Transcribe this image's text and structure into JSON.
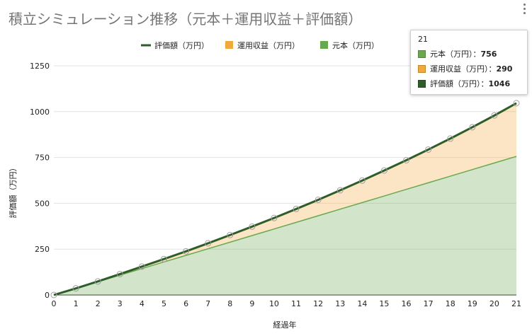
{
  "chart_data": {
    "type": "area",
    "title": "積立シミュレーション推移（元本＋運用収益＋評価額）",
    "xlabel": "経過年",
    "ylabel": "評価額（万円）",
    "x": [
      0,
      1,
      2,
      3,
      4,
      5,
      6,
      7,
      8,
      9,
      10,
      11,
      12,
      13,
      14,
      15,
      16,
      17,
      18,
      19,
      20,
      21
    ],
    "ylim": [
      0,
      1250
    ],
    "yticks": [
      0,
      250,
      500,
      750,
      1000,
      1250
    ],
    "grid": true,
    "legend_position": "top",
    "stacked": true,
    "series": [
      {
        "name": "評価額（万円）",
        "kind": "line",
        "color": "#2e5d2a",
        "values": [
          0,
          36,
          74,
          114,
          155,
          196,
          238,
          282,
          327,
          373,
          420,
          469,
          519,
          571,
          624,
          679,
          735,
          793,
          853,
          915,
          979,
          1046
        ]
      },
      {
        "name": "運用収益（万円）",
        "kind": "area",
        "color": "#f2a93b",
        "values": [
          0,
          0,
          2,
          6,
          11,
          16,
          22,
          30,
          39,
          49,
          60,
          73,
          87,
          103,
          120,
          139,
          159,
          181,
          205,
          231,
          259,
          290
        ]
      },
      {
        "name": "元本（万円）",
        "kind": "area",
        "color": "#6aa84f",
        "values": [
          0,
          36,
          72,
          108,
          144,
          180,
          216,
          252,
          288,
          324,
          360,
          396,
          432,
          468,
          504,
          540,
          576,
          612,
          648,
          684,
          720,
          756
        ]
      }
    ]
  },
  "legend": [
    {
      "label": "評価額（万円）",
      "color": "#2e5d2a",
      "kind": "line"
    },
    {
      "label": "運用収益（万円）",
      "color": "#f2a93b",
      "kind": "box"
    },
    {
      "label": "元本（万円）",
      "color": "#6aa84f",
      "kind": "box"
    }
  ],
  "tooltip": {
    "header": "21",
    "rows": [
      {
        "label": "元本（万円）：",
        "value": "756",
        "color": "#6aa84f"
      },
      {
        "label": "運用収益（万円）：",
        "value": "290",
        "color": "#f2a93b"
      },
      {
        "label": "評価額（万円）：",
        "value": "1046",
        "color": "#2e5d2a"
      }
    ]
  },
  "menu": {
    "icon": "more-vert-icon"
  }
}
